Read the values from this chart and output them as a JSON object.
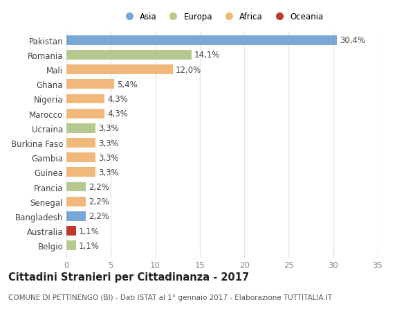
{
  "categories": [
    "Pakistan",
    "Romania",
    "Mali",
    "Ghana",
    "Nigeria",
    "Marocco",
    "Ucraina",
    "Burkina Faso",
    "Gambia",
    "Guinea",
    "Francia",
    "Senegal",
    "Bangladesh",
    "Australia",
    "Belgio"
  ],
  "values": [
    30.4,
    14.1,
    12.0,
    5.4,
    4.3,
    4.3,
    3.3,
    3.3,
    3.3,
    3.3,
    2.2,
    2.2,
    2.2,
    1.1,
    1.1
  ],
  "labels": [
    "30,4%",
    "14,1%",
    "12,0%",
    "5,4%",
    "4,3%",
    "4,3%",
    "3,3%",
    "3,3%",
    "3,3%",
    "3,3%",
    "2,2%",
    "2,2%",
    "2,2%",
    "1,1%",
    "1,1%"
  ],
  "bar_colors": [
    "#7aa8d4",
    "#b5c98e",
    "#f0b87a",
    "#f0b87a",
    "#f0b87a",
    "#f0b87a",
    "#b5c98e",
    "#f0b87a",
    "#f0b87a",
    "#f0b87a",
    "#b5c98e",
    "#f0b87a",
    "#7aa8d4",
    "#c0392b",
    "#b5c98e"
  ],
  "continent_labels": [
    "Asia",
    "Europa",
    "Africa",
    "Oceania"
  ],
  "continent_colors": [
    "#7aa8d4",
    "#b5c98e",
    "#f0b87a",
    "#c0392b"
  ],
  "xlim": [
    0,
    35
  ],
  "xticks": [
    0,
    5,
    10,
    15,
    20,
    25,
    30,
    35
  ],
  "title": "Cittadini Stranieri per Cittadinanza - 2017",
  "subtitle": "COMUNE DI PETTINENGO (BI) - Dati ISTAT al 1° gennaio 2017 - Elaborazione TUTTITALIA.IT",
  "bg_color": "#ffffff",
  "bar_height": 0.65,
  "grid_color": "#e8e8e8",
  "label_fontsize": 8.5,
  "title_fontsize": 10.5,
  "subtitle_fontsize": 7.5
}
